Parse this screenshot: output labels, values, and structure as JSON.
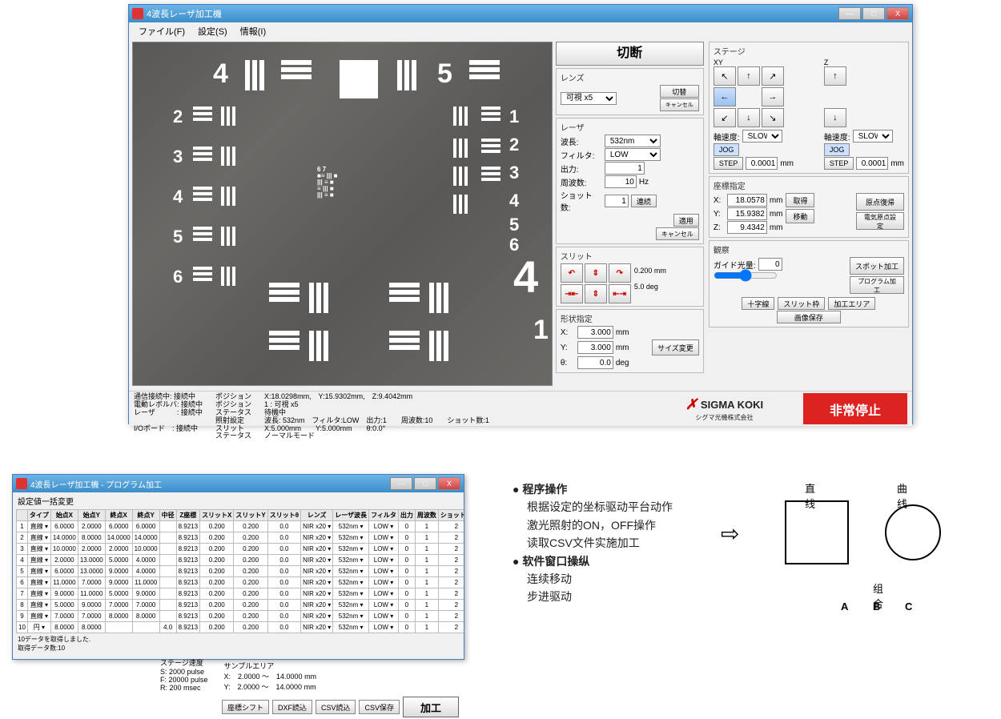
{
  "main": {
    "title": "4波長レーザ加工機",
    "menu": {
      "file": "ファイル(F)",
      "settings": "設定(S)",
      "info": "情報(I)"
    },
    "cut_btn": "切断",
    "lens": {
      "title": "レンズ",
      "value": "可視 x5",
      "switch": "切替",
      "cancel": "キャンセル"
    },
    "laser": {
      "title": "レーザ",
      "wl_lbl": "波長:",
      "wl": "532nm",
      "filter_lbl": "フィルタ:",
      "filter": "LOW",
      "out_lbl": "出力:",
      "out": "1",
      "freq_lbl": "周波数:",
      "freq": "10",
      "freq_unit": "Hz",
      "shot_lbl": "ショット数:",
      "shot": "1",
      "cont": "連続",
      "apply": "適用",
      "cancel": "キャンセル"
    },
    "slit": {
      "title": "スリット",
      "val1": "0.200",
      "u1": "mm",
      "val2": "5.0",
      "u2": "deg"
    },
    "shape": {
      "title": "形状指定",
      "x": "3.000",
      "y": "3.000",
      "th": "0.0",
      "btn": "サイズ変更"
    },
    "stage": {
      "title": "ステージ",
      "xy": "XY",
      "z": "Z",
      "speed_lbl": "軸速度:",
      "speed": "SLOW",
      "jog": "JOG",
      "step": "STEP",
      "stepval": "0.0001",
      "mm": "mm"
    },
    "coord": {
      "title": "座標指定",
      "x": "18.0578",
      "y": "15.9382",
      "z": "9.4342",
      "get": "取得",
      "move": "移動",
      "origin": "原点復帰",
      "eorigin": "電気原点設定"
    },
    "obs": {
      "title": "観察",
      "guide_lbl": "ガイド光量:",
      "guide": "0",
      "spot": "スポット加工",
      "prog": "プログラム加工",
      "cross": "十字線",
      "slitframe": "スリット枠",
      "area": "加工エリア",
      "save": "画像保存"
    },
    "status": {
      "c1": "通信接続中: 接続中\n電動レボルバ: 接続中\nレーザ　　　: 接続中\n\nI/Oボード　: 接続中",
      "c2": "ポジション\nポジション\nステータス\n照射設定\nスリット\nステータス",
      "c3": "X:18.0298mm,　Y:15.9302mm,　Z:9.4042mm\n1 : 可視 x5\n待機中\n波長: 532nm　フィルタ:LOW　出力:1　　周波数:10　　ショット数:1\nX:5.000mm　　Y:5.000mm　　θ:0.0°\nノーマルモード"
    },
    "logo": "SIGMA KOKI",
    "logo_sub": "シグマ光機株式会社",
    "estop": "非常停止"
  },
  "sub": {
    "title": "4波長レーザ加工機 - プログラム加工",
    "heading": "設定値一括変更",
    "cols": [
      "",
      "タイプ",
      "始点X",
      "始点Y",
      "終点X",
      "終点Y",
      "中径",
      "Z座標",
      "スリットX",
      "スリットY",
      "スリットθ",
      "レンズ",
      "レーザ波長",
      "フィルタ",
      "出力",
      "周波数",
      "ショット数"
    ],
    "rows": [
      [
        "1",
        "直線",
        "6.0000",
        "2.0000",
        "6.0000",
        "6.0000",
        "",
        "8.9213",
        "0.200",
        "0.200",
        "0.0",
        "NIR x20",
        "532nm",
        "LOW",
        "0",
        "1",
        "2"
      ],
      [
        "2",
        "直線",
        "14.0000",
        "8.0000",
        "14.0000",
        "14.0000",
        "",
        "8.9213",
        "0.200",
        "0.200",
        "0.0",
        "NIR x20",
        "532nm",
        "LOW",
        "0",
        "1",
        "2"
      ],
      [
        "3",
        "直線",
        "10.0000",
        "2.0000",
        "2.0000",
        "10.0000",
        "",
        "8.9213",
        "0.200",
        "0.200",
        "0.0",
        "NIR x20",
        "532nm",
        "LOW",
        "0",
        "1",
        "2"
      ],
      [
        "4",
        "直線",
        "2.0000",
        "13.0000",
        "5.0000",
        "4.0000",
        "",
        "8.9213",
        "0.200",
        "0.200",
        "0.0",
        "NIR x20",
        "532nm",
        "LOW",
        "0",
        "1",
        "2"
      ],
      [
        "5",
        "直線",
        "6.0000",
        "13.0000",
        "9.0000",
        "4.0000",
        "",
        "8.9213",
        "0.200",
        "0.200",
        "0.0",
        "NIR x20",
        "532nm",
        "LOW",
        "0",
        "1",
        "2"
      ],
      [
        "6",
        "直線",
        "11.0000",
        "7.0000",
        "9.0000",
        "11.0000",
        "",
        "8.9213",
        "0.200",
        "0.200",
        "0.0",
        "NIR x20",
        "532nm",
        "LOW",
        "0",
        "1",
        "2"
      ],
      [
        "7",
        "直線",
        "9.0000",
        "11.0000",
        "5.0000",
        "9.0000",
        "",
        "8.9213",
        "0.200",
        "0.200",
        "0.0",
        "NIR x20",
        "532nm",
        "LOW",
        "0",
        "1",
        "2"
      ],
      [
        "8",
        "直線",
        "5.0000",
        "9.0000",
        "7.0000",
        "7.0000",
        "",
        "8.9213",
        "0.200",
        "0.200",
        "0.0",
        "NIR x20",
        "532nm",
        "LOW",
        "0",
        "1",
        "2"
      ],
      [
        "9",
        "直線",
        "7.0000",
        "7.0000",
        "8.0000",
        "8.0000",
        "",
        "8.9213",
        "0.200",
        "0.200",
        "0.0",
        "NIR x20",
        "532nm",
        "LOW",
        "0",
        "1",
        "2"
      ],
      [
        "10",
        "円",
        "8.0000",
        "8.0000",
        "",
        "",
        "4.0",
        "8.9213",
        "0.200",
        "0.200",
        "0.0",
        "NIR x20",
        "532nm",
        "LOW",
        "0",
        "1",
        "2"
      ]
    ],
    "msg": "10データを取得しました.\n取得データ数:10",
    "stage_speed": "ステージ速度",
    "sx": "2000",
    "sy": "20000",
    "sr": "200",
    "unit": "pulse",
    "msec": "msec",
    "sample": "サンプルエリア",
    "sa_x": "X:　2.0000 ～　14.0000 mm",
    "sa_y": "Y:　2.0000 ～　14.0000 mm",
    "btns": {
      "shift": "座標シフト",
      "dxf": "DXF読込",
      "csvr": "CSV読込",
      "csvs": "CSV保存",
      "proc": "加工"
    }
  },
  "desc": {
    "h1": "程序操作",
    "l1": "根据设定的坐标驱动平台动作",
    "l2": "激光照射的ON，OFF操作",
    "l3": "读取CSV文件实施加工",
    "h2": "软件窗口操纵",
    "l4": "连续移动",
    "l5": "步进驱动"
  },
  "diag": {
    "line": "直线",
    "curve": "曲线",
    "combo": "组合",
    "a": "A",
    "b": "B",
    "c": "C"
  }
}
